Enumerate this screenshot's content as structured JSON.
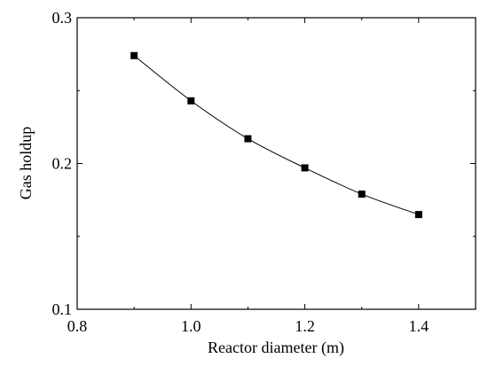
{
  "chart_data": {
    "type": "line",
    "title": "",
    "xlabel": "Reactor diameter (m)",
    "ylabel": "Gas holdup",
    "xlim": [
      0.8,
      1.5
    ],
    "ylim": [
      0.1,
      0.3
    ],
    "x_ticks": [
      "0.8",
      "1.0",
      "1.2",
      "1.4"
    ],
    "y_ticks": [
      "0.1",
      "0.2",
      "0.3"
    ],
    "grid": false,
    "series": [
      {
        "x": [
          0.9,
          1.0,
          1.1,
          1.2,
          1.3,
          1.4
        ],
        "y": [
          0.274,
          0.243,
          0.217,
          0.197,
          0.179,
          0.165
        ],
        "marker": "square",
        "color": "#000000"
      }
    ]
  }
}
